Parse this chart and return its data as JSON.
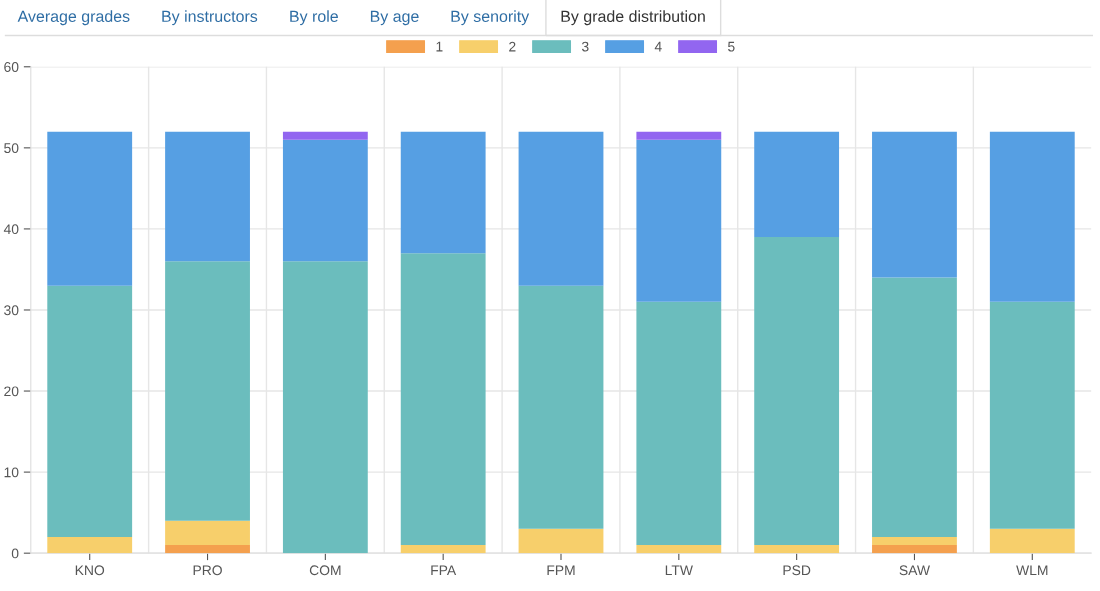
{
  "chart_data": {
    "type": "bar",
    "stacked": true,
    "categories": [
      "KNO",
      "PRO",
      "COM",
      "FPA",
      "FPM",
      "LTW",
      "PSD",
      "SAW",
      "WLM"
    ],
    "series": [
      {
        "name": "1",
        "color": "#f4a04e",
        "values": [
          0,
          1,
          0,
          0,
          0,
          0,
          0,
          1,
          0
        ]
      },
      {
        "name": "2",
        "color": "#f7cf6b",
        "values": [
          2,
          3,
          0,
          1,
          3,
          1,
          1,
          1,
          3
        ]
      },
      {
        "name": "3",
        "color": "#6bbdbd",
        "values": [
          31,
          32,
          36,
          36,
          30,
          30,
          38,
          32,
          28
        ]
      },
      {
        "name": "4",
        "color": "#569fe3",
        "values": [
          19,
          16,
          15,
          15,
          19,
          20,
          13,
          18,
          21
        ]
      },
      {
        "name": "5",
        "color": "#9266f0",
        "values": [
          0,
          0,
          1,
          0,
          0,
          1,
          0,
          0,
          0
        ]
      }
    ],
    "ylim": [
      0,
      60
    ],
    "yticks": [
      0,
      10,
      20,
      30,
      40,
      50,
      60
    ],
    "grid": true,
    "legend": "top",
    "annotations": [
      "Average grades",
      "By instructors",
      "By role",
      "By age",
      "By senority",
      "By grade distribution"
    ]
  }
}
